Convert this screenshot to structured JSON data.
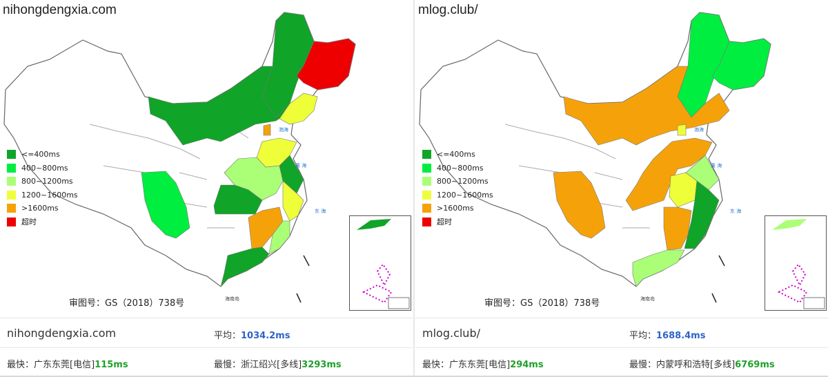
{
  "legend": [
    {
      "label": "<=400ms",
      "color": "#10a428"
    },
    {
      "label": "400~800ms",
      "color": "#00ee40"
    },
    {
      "label": "800~1200ms",
      "color": "#aaff77"
    },
    {
      "label": "1200~1600ms",
      "color": "#eeff3a"
    },
    {
      "label": ">1600ms",
      "color": "#f5a20a"
    },
    {
      "label": "超时",
      "color": "#ee0000"
    }
  ],
  "approval": "审图号：GS（2018）738号",
  "panels": [
    {
      "title": "nihongdengxia.com",
      "avg_label": "平均：",
      "avg_value": "1034.2ms",
      "fast_label": "最快：广东东莞[电信]",
      "fast_value": "115ms",
      "slow_label": "最慢：浙江绍兴[多线]",
      "slow_value": "3293ms"
    },
    {
      "title": "mlog.club/",
      "avg_label": "平均：",
      "avg_value": "1688.4ms",
      "fast_label": "最快：广东东莞[电信]",
      "fast_value": "294ms",
      "slow_label": "最慢：内蒙呼和浩特[多线]",
      "slow_value": "6769ms"
    }
  ]
}
